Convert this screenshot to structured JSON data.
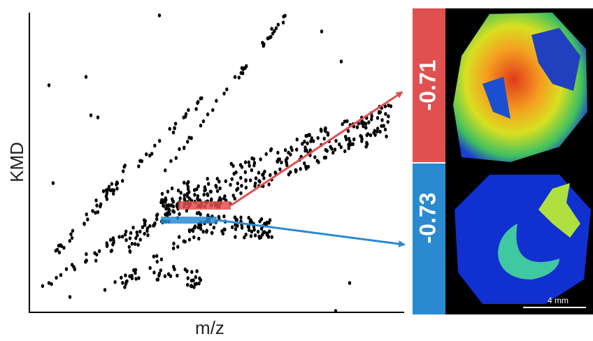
{
  "axes": {
    "y_label": "KMD",
    "x_label": "m/z"
  },
  "panels": [
    {
      "label": "-0.71"
    },
    {
      "label": "-0.73"
    }
  ],
  "scale_bar": "4 mm"
}
